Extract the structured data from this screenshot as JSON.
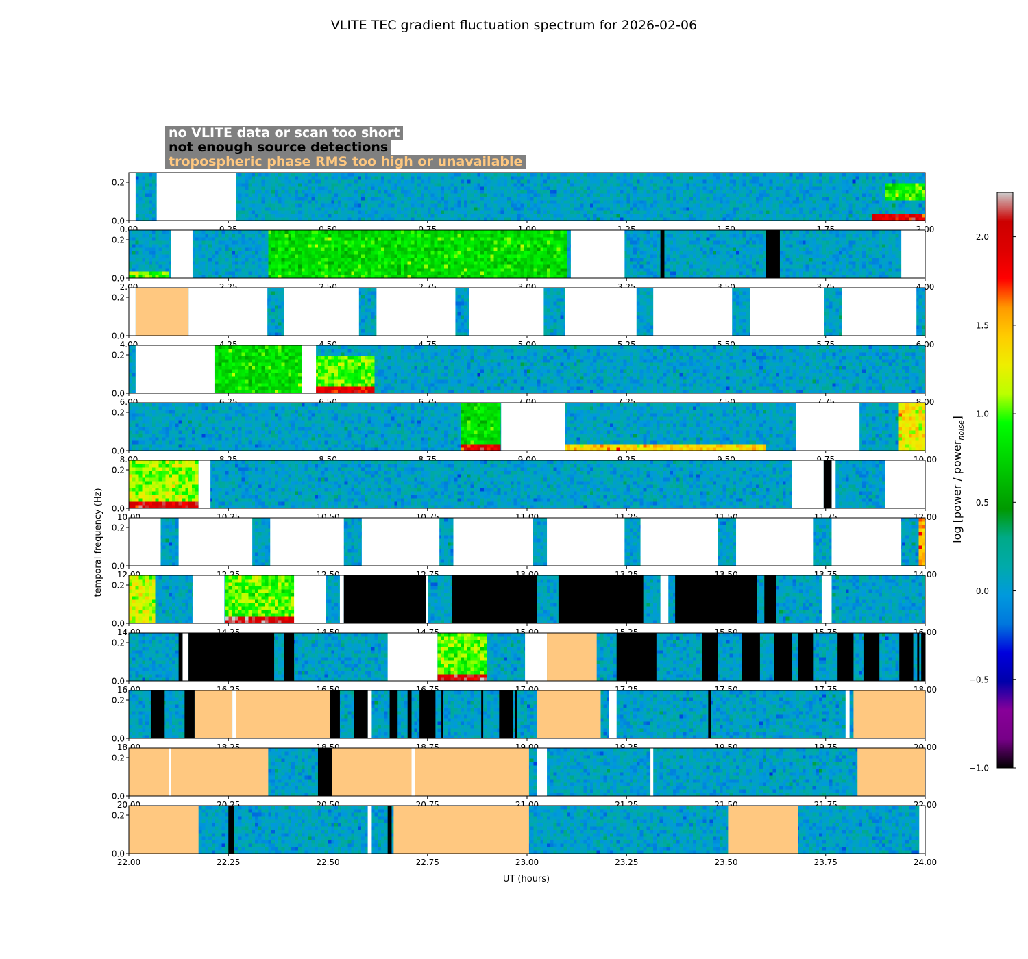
{
  "chart_data": {
    "type": "heatmap",
    "title": "VLITE TEC gradient fluctuation spectrum for 2026-02-06",
    "xlabel": "UT (hours)",
    "ylabel": "temporal frequency (Hz)",
    "colorbar_label": "log [power / power",
    "colorbar_label_sub": "noise",
    "colorbar_label_end": "]",
    "colorbar_range": [
      -1.0,
      2.25
    ],
    "colorbar_ticks": [
      "−1.0",
      "−0.5",
      "0.0",
      "0.5",
      "1.0",
      "1.5",
      "2.0"
    ],
    "colorbar_tick_values": [
      -1.0,
      -0.5,
      0.0,
      0.5,
      1.0,
      1.5,
      2.0
    ],
    "colormap": "nipy_spectral",
    "ylim": [
      0.0,
      0.25
    ],
    "y_ticks": [
      "0.0",
      "0.2"
    ],
    "y_tick_values": [
      0.0,
      0.2
    ],
    "legend": [
      {
        "text": "no VLITE data or scan too short",
        "color": "#ffffff"
      },
      {
        "text": "not enough source detections",
        "color": "#000000"
      },
      {
        "text": "tropospheric phase RMS too high or unavailable",
        "color": "#ffc880"
      }
    ],
    "flag_colors": {
      "nodata": "#ffffff",
      "detect": "#000000",
      "trop": "#ffc880"
    },
    "panels": [
      {
        "xlim": [
          0,
          2
        ],
        "ticks": [
          "0.00",
          "0.25",
          "0.50",
          "0.75",
          "1.00",
          "1.25",
          "1.50",
          "1.75",
          "2.00"
        ],
        "nodata": [
          [
            0,
            0.017
          ],
          [
            0.07,
            0.27
          ]
        ],
        "detect": [],
        "trop": [],
        "hot": [
          [
            1.87,
            2.0,
            0.0,
            0.04,
            1.9
          ],
          [
            1.9,
            2.0,
            0.1,
            0.2,
            0.9
          ]
        ]
      },
      {
        "xlim": [
          2,
          4
        ],
        "ticks": [
          "2.00",
          "2.25",
          "2.50",
          "2.75",
          "3.00",
          "3.25",
          "3.50",
          "3.75",
          "4.00"
        ],
        "nodata": [
          [
            2.105,
            2.16
          ],
          [
            3.11,
            3.245
          ],
          [
            3.94,
            4.0
          ]
        ],
        "detect": [
          [
            3.335,
            3.345
          ],
          [
            3.6,
            3.635
          ]
        ],
        "trop": [],
        "hot": [
          [
            2.0,
            2.1,
            0.0,
            0.04,
            1.0
          ],
          [
            2.35,
            3.1,
            0.0,
            0.25,
            0.8
          ]
        ]
      },
      {
        "xlim": [
          4,
          6
        ],
        "ticks": [
          "4.00",
          "4.25",
          "4.50",
          "4.75",
          "5.00",
          "5.25",
          "5.50",
          "5.75",
          "6.00"
        ],
        "nodata": [
          [
            4.0,
            4.017
          ],
          [
            4.15,
            4.348
          ],
          [
            4.39,
            4.578
          ],
          [
            4.622,
            4.82
          ],
          [
            4.854,
            5.042
          ],
          [
            5.095,
            5.275
          ],
          [
            5.317,
            5.515
          ],
          [
            5.56,
            5.747
          ],
          [
            5.79,
            5.978
          ]
        ],
        "detect": [],
        "trop": [
          [
            4.017,
            4.15
          ]
        ],
        "hot": []
      },
      {
        "xlim": [
          6,
          8
        ],
        "ticks": [
          "6.00",
          "6.25",
          "6.50",
          "6.75",
          "7.00",
          "7.25",
          "7.50",
          "7.75",
          "8.00"
        ],
        "nodata": [
          [
            6.017,
            6.215
          ],
          [
            6.435,
            6.47
          ]
        ],
        "detect": [],
        "trop": [],
        "hot": [
          [
            6.215,
            6.435,
            0.0,
            0.25,
            0.8
          ],
          [
            6.47,
            6.62,
            0.0,
            0.2,
            1.0
          ],
          [
            6.47,
            6.62,
            0.0,
            0.03,
            1.9
          ]
        ]
      },
      {
        "xlim": [
          8,
          10
        ],
        "ticks": [
          "8.00",
          "8.25",
          "8.50",
          "8.75",
          "9.00",
          "9.25",
          "9.50",
          "9.75",
          "10.00"
        ],
        "nodata": [
          [
            8.935,
            9.095
          ],
          [
            9.675,
            9.835
          ]
        ],
        "detect": [],
        "trop": [],
        "hot": [
          [
            8.83,
            8.935,
            0.0,
            0.04,
            1.9
          ],
          [
            8.83,
            8.935,
            0.04,
            0.25,
            0.8
          ],
          [
            9.095,
            9.6,
            0.0,
            0.04,
            1.4
          ],
          [
            9.93,
            10.0,
            0.0,
            0.25,
            1.3
          ]
        ]
      },
      {
        "xlim": [
          10,
          12
        ],
        "ticks": [
          "10.00",
          "10.25",
          "10.50",
          "10.75",
          "11.00",
          "11.25",
          "11.50",
          "11.75",
          "12.00"
        ],
        "nodata": [
          [
            10.175,
            10.205
          ],
          [
            11.665,
            11.745
          ],
          [
            11.765,
            11.775
          ],
          [
            11.9,
            12.0
          ]
        ],
        "detect": [
          [
            11.745,
            11.765
          ]
        ],
        "trop": [],
        "hot": [
          [
            10.0,
            10.175,
            0.0,
            0.04,
            2.0
          ],
          [
            10.0,
            10.175,
            0.04,
            0.25,
            1.1
          ]
        ]
      },
      {
        "xlim": [
          12,
          14
        ],
        "ticks": [
          "12.00",
          "12.25",
          "12.50",
          "12.75",
          "13.00",
          "13.25",
          "13.50",
          "13.75",
          "14.00"
        ],
        "nodata": [
          [
            12.0,
            12.08
          ],
          [
            12.125,
            12.31
          ],
          [
            12.355,
            12.54
          ],
          [
            12.585,
            12.78
          ],
          [
            12.815,
            13.015
          ],
          [
            13.05,
            13.245
          ],
          [
            13.285,
            13.48
          ],
          [
            13.525,
            13.72
          ],
          [
            13.765,
            13.94
          ]
        ],
        "detect": [],
        "trop": [],
        "hot": [
          [
            13.985,
            14.0,
            0.0,
            0.25,
            1.5
          ]
        ]
      },
      {
        "xlim": [
          14,
          16
        ],
        "ticks": [
          "14.00",
          "14.25",
          "14.50",
          "14.75",
          "15.00",
          "15.25",
          "15.50",
          "15.75",
          "16.00"
        ],
        "nodata": [
          [
            14.16,
            14.24
          ],
          [
            14.415,
            14.495
          ],
          [
            14.53,
            14.54
          ],
          [
            14.747,
            14.752
          ],
          [
            15.335,
            15.355
          ],
          [
            15.74,
            15.765
          ]
        ],
        "detect": [
          [
            14.54,
            14.747
          ],
          [
            14.812,
            15.025
          ],
          [
            15.079,
            15.292
          ],
          [
            15.372,
            15.578
          ],
          [
            15.596,
            15.625
          ]
        ],
        "trop": [],
        "hot": [
          [
            14.0,
            14.07,
            0.0,
            0.25,
            1.2
          ],
          [
            14.24,
            14.415,
            0.0,
            0.25,
            1.0
          ],
          [
            14.24,
            14.415,
            0.0,
            0.03,
            2.1
          ]
        ]
      },
      {
        "xlim": [
          16,
          18
        ],
        "ticks": [
          "16.00",
          "16.25",
          "16.50",
          "16.75",
          "17.00",
          "17.25",
          "17.50",
          "17.75",
          "18.00"
        ],
        "nodata": [
          [
            16.135,
            16.15
          ],
          [
            16.65,
            16.775
          ],
          [
            16.995,
            17.05
          ]
        ],
        "detect": [
          [
            16.125,
            16.135
          ],
          [
            16.15,
            16.365
          ],
          [
            16.39,
            16.415
          ],
          [
            17.225,
            17.325
          ],
          [
            17.44,
            17.48
          ],
          [
            17.54,
            17.585
          ],
          [
            17.62,
            17.665
          ],
          [
            17.68,
            17.72
          ],
          [
            17.78,
            17.82
          ],
          [
            17.845,
            17.885
          ],
          [
            17.935,
            17.97
          ],
          [
            17.98,
            17.985
          ],
          [
            17.99,
            18.0
          ]
        ],
        "trop": [
          [
            17.05,
            17.175
          ]
        ],
        "hot": [
          [
            16.775,
            16.9,
            0.0,
            0.25,
            1.0
          ],
          [
            16.775,
            16.9,
            0.0,
            0.03,
            2.0
          ]
        ]
      },
      {
        "xlim": [
          18,
          20
        ],
        "ticks": [
          "18.00",
          "18.25",
          "18.50",
          "18.75",
          "19.00",
          "19.25",
          "19.50",
          "19.75",
          "20.00"
        ],
        "nodata": [
          [
            18.26,
            18.27
          ],
          [
            18.6,
            18.61
          ],
          [
            19.205,
            19.225
          ],
          [
            19.8,
            19.81
          ]
        ],
        "detect": [
          [
            18.055,
            18.09
          ],
          [
            18.14,
            18.165
          ],
          [
            18.505,
            18.53
          ],
          [
            18.565,
            18.6
          ],
          [
            18.655,
            18.675
          ],
          [
            18.7,
            18.71
          ],
          [
            18.73,
            18.77
          ],
          [
            18.785,
            18.79
          ],
          [
            18.885,
            18.89
          ],
          [
            18.93,
            18.965
          ],
          [
            18.97,
            18.975
          ],
          [
            19.455,
            19.462
          ]
        ],
        "trop": [
          [
            18.165,
            18.26
          ],
          [
            18.27,
            18.505
          ],
          [
            19.025,
            19.185
          ],
          [
            19.82,
            20.0
          ]
        ],
        "hot": []
      },
      {
        "xlim": [
          20,
          22
        ],
        "ticks": [
          "20.00",
          "20.25",
          "20.50",
          "20.75",
          "21.00",
          "21.25",
          "21.50",
          "21.75",
          "22.00"
        ],
        "nodata": [
          [
            20.1,
            20.105
          ],
          [
            20.71,
            20.718
          ],
          [
            21.025,
            21.05
          ],
          [
            21.31,
            21.317
          ]
        ],
        "detect": [
          [
            20.475,
            20.51
          ]
        ],
        "trop": [
          [
            20.0,
            20.1
          ],
          [
            20.105,
            20.35
          ],
          [
            20.51,
            20.71
          ],
          [
            20.718,
            21.005
          ],
          [
            21.83,
            22.0
          ]
        ],
        "hot": []
      },
      {
        "xlim": [
          22,
          24
        ],
        "ticks": [
          "22.00",
          "22.25",
          "22.50",
          "22.75",
          "23.00",
          "23.25",
          "23.50",
          "23.75",
          "24.00"
        ],
        "nodata": [
          [
            22.6,
            22.61
          ],
          [
            23.985,
            24.0
          ]
        ],
        "detect": [
          [
            22.25,
            22.265
          ],
          [
            22.65,
            22.66
          ]
        ],
        "trop": [
          [
            22.0,
            22.175
          ],
          [
            22.665,
            23.005
          ],
          [
            23.505,
            23.68
          ]
        ],
        "hot": []
      }
    ]
  }
}
